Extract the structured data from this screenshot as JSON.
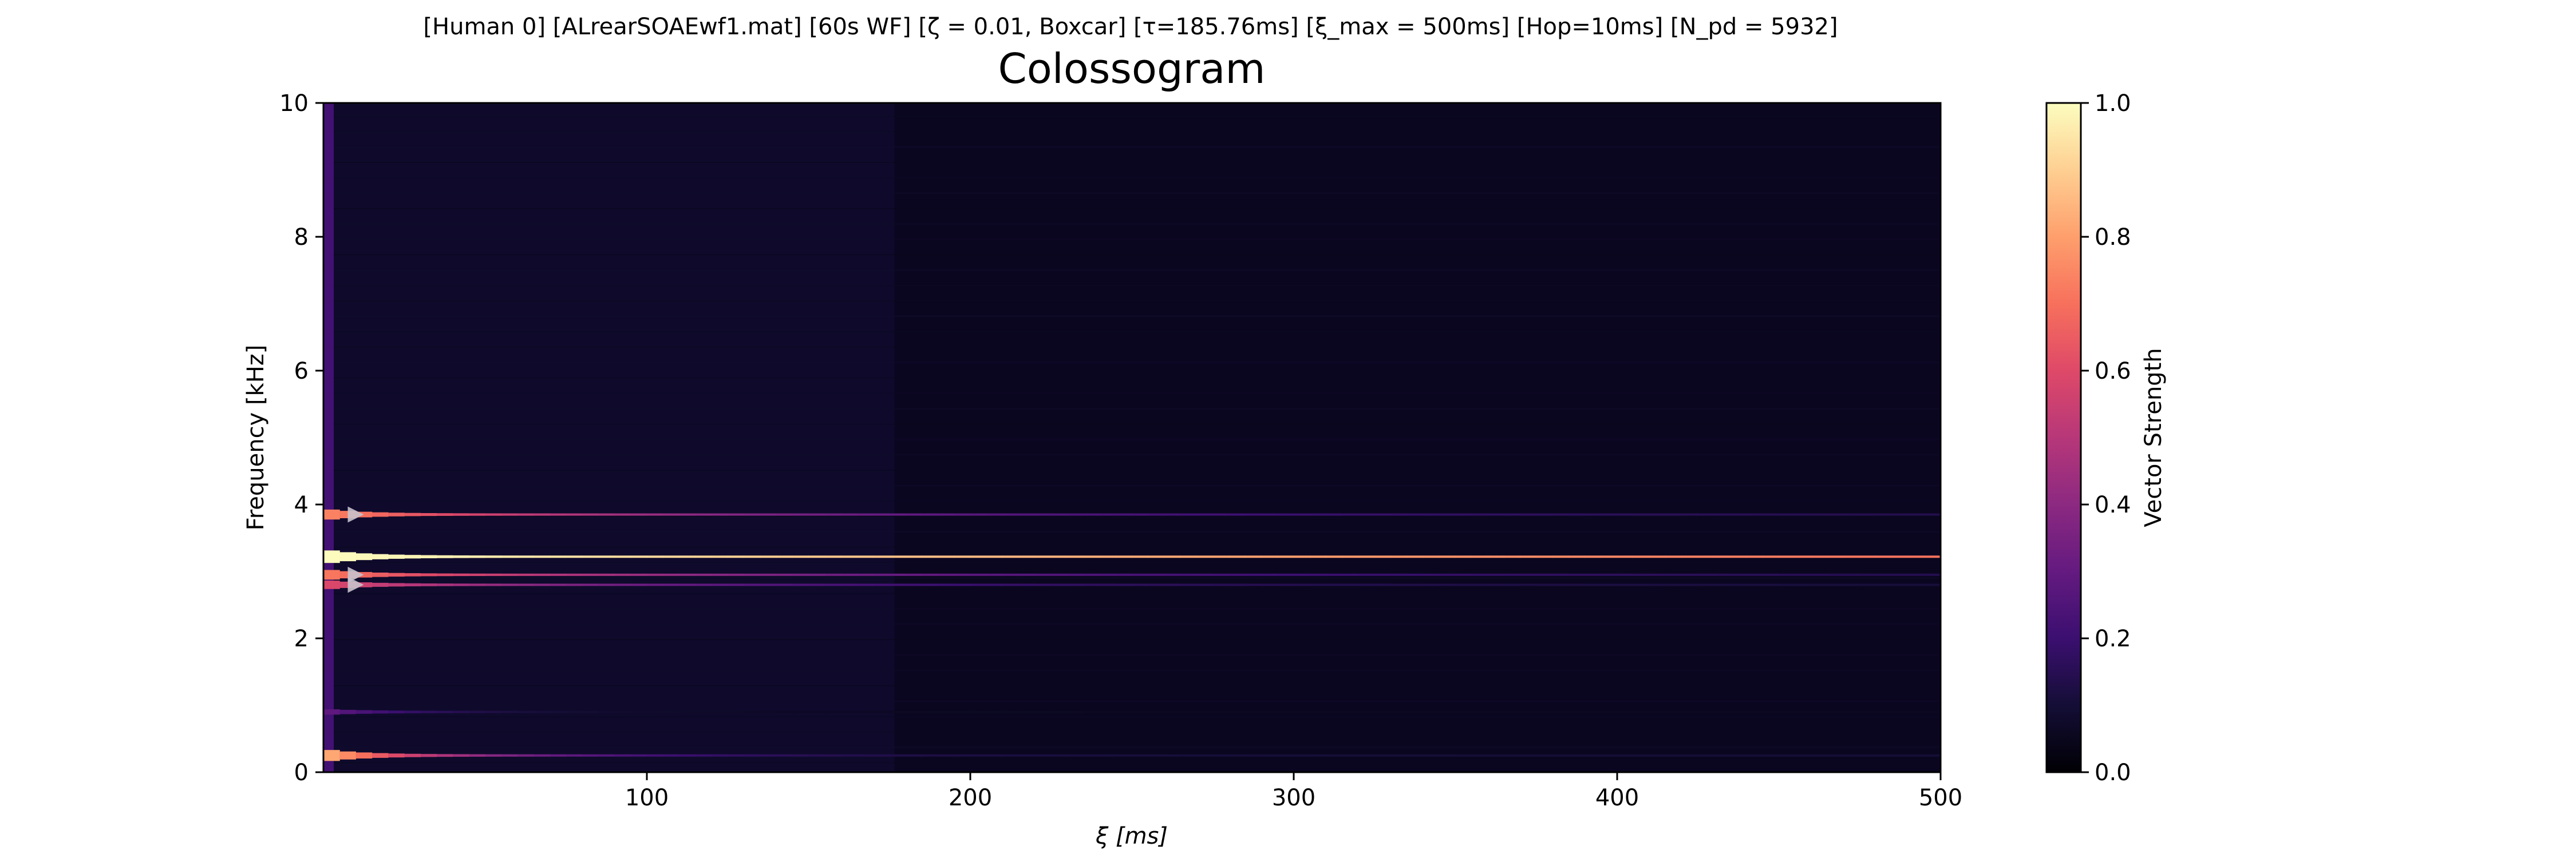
{
  "chart_data": {
    "type": "heatmap",
    "suptitle": "[Human 0]   [ALrearSOAEwf1.mat]   [60s WF]   [ζ = 0.01, Boxcar]   [τ=185.76ms]   [ξ_max = 500ms]   [Hop=10ms]   [N_pd = 5932]",
    "title": "Colossogram",
    "xlabel": "ξ [ms]",
    "ylabel": "Frequency [kHz]",
    "xlim": [
      0,
      500
    ],
    "ylim": [
      0,
      10
    ],
    "x_ticks": [
      "100",
      "200",
      "300",
      "400",
      "500"
    ],
    "y_ticks": [
      "0",
      "2",
      "4",
      "6",
      "8",
      "10"
    ],
    "colorbar": {
      "label": "Vector Strength",
      "colormap": "magma",
      "range": [
        0.0,
        1.0
      ],
      "ticks": [
        "0.0",
        "0.2",
        "0.4",
        "0.6",
        "0.8",
        "1.0"
      ]
    },
    "grid": false,
    "background_level": 0.05,
    "tau_ms": 185.76,
    "bands": [
      {
        "freq_khz": 3.22,
        "peak": 1.0,
        "decay_ms": 700,
        "floor": 0.42
      },
      {
        "freq_khz": 3.85,
        "peak": 0.75,
        "decay_ms": 140,
        "floor": 0.12
      },
      {
        "freq_khz": 2.95,
        "peak": 0.72,
        "decay_ms": 150,
        "floor": 0.12
      },
      {
        "freq_khz": 2.8,
        "peak": 0.6,
        "decay_ms": 120,
        "floor": 0.1
      },
      {
        "freq_khz": 0.25,
        "peak": 0.85,
        "decay_ms": 55,
        "floor": 0.1
      },
      {
        "freq_khz": 0.9,
        "peak": 0.3,
        "decay_ms": 40,
        "floor": 0.06
      }
    ],
    "markers": [
      {
        "type": "triangle-right",
        "x_ms": 10,
        "freq_khz": 3.85
      },
      {
        "type": "triangle-right",
        "x_ms": 10,
        "freq_khz": 2.95
      },
      {
        "type": "triangle-right",
        "x_ms": 10,
        "freq_khz": 2.8
      }
    ],
    "colors": {
      "marker": "#c8c2cc",
      "axes": "#000000"
    }
  }
}
